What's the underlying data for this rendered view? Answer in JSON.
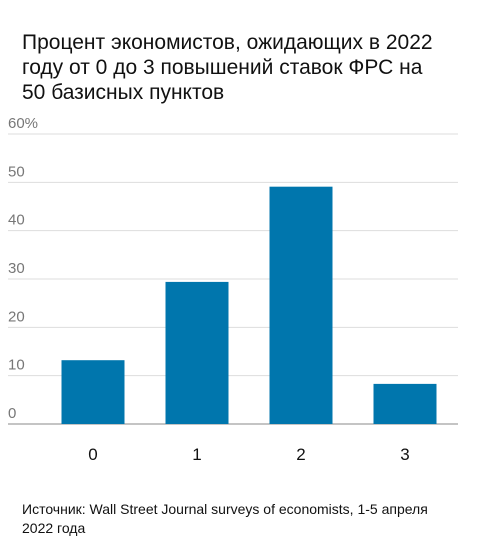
{
  "chart_data": {
    "type": "bar",
    "title": "Процент экономистов, ожидающих в 2022 году от 0 до 3 повышений ставок ФРС на 50 базисных пунктов",
    "categories": [
      "0",
      "1",
      "2",
      "3"
    ],
    "values": [
      13.2,
      29.4,
      49.1,
      8.3
    ],
    "color": "#0076ad",
    "ylim": [
      0,
      60
    ],
    "yticks": [
      0,
      10,
      20,
      30,
      40,
      50,
      {
        "value": 60,
        "label": "60%"
      }
    ],
    "grid": true,
    "source": "Источник: Wall Street Journal surveys of economists, 1-5 апреля 2022 года"
  }
}
